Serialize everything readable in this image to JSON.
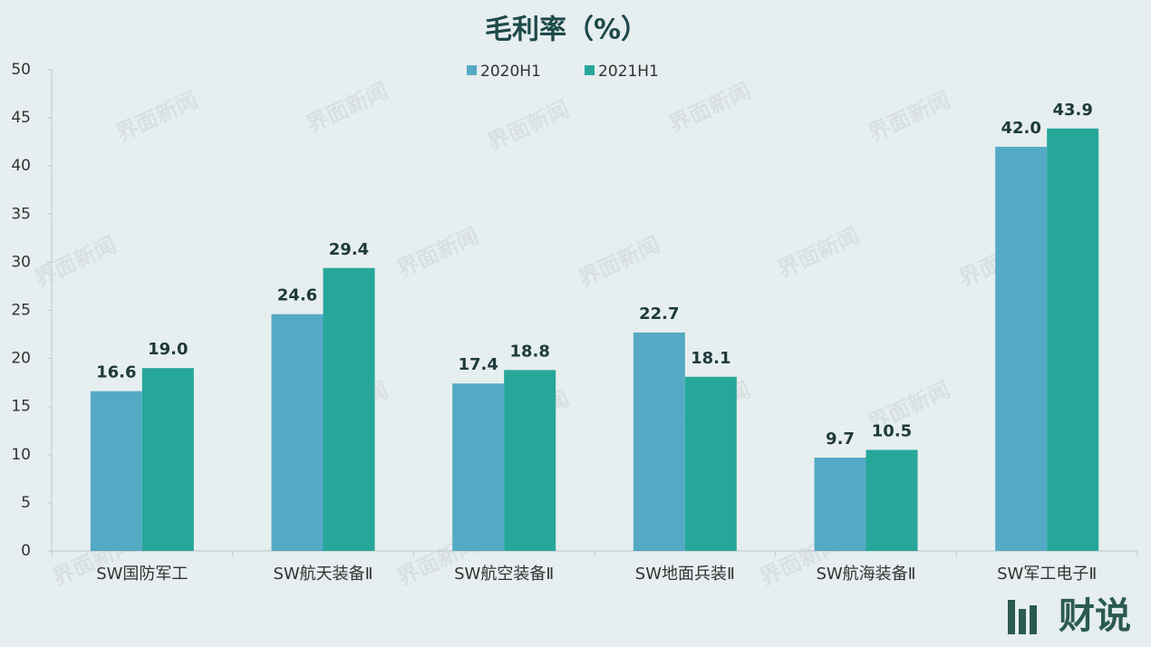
{
  "chart_data": {
    "type": "bar",
    "title": "毛利率（%）",
    "categories": [
      "SW国防军工",
      "SW航天装备Ⅱ",
      "SW航空装备Ⅱ",
      "SW地面兵装Ⅱ",
      "SW航海装备Ⅱ",
      "SW军工电子Ⅱ"
    ],
    "series": [
      {
        "name": "2020H1",
        "color": "#54aac4",
        "values": [
          16.6,
          24.6,
          17.4,
          22.7,
          9.7,
          42.0
        ],
        "value_labels": [
          "16.6",
          "24.6",
          "17.4",
          "22.7",
          "9.7",
          "42.0"
        ]
      },
      {
        "name": "2021H1",
        "color": "#27a79a",
        "values": [
          19.0,
          29.4,
          18.8,
          18.1,
          10.5,
          43.9
        ],
        "value_labels": [
          "19.0",
          "29.4",
          "18.8",
          "18.1",
          "10.5",
          "43.9"
        ]
      }
    ],
    "ylim": [
      0,
      50
    ],
    "yticks": [
      0,
      5,
      10,
      15,
      20,
      25,
      30,
      35,
      40,
      45,
      50
    ],
    "grid": false,
    "legend": "top",
    "watermark": "界面新闻",
    "logo": "财说"
  }
}
